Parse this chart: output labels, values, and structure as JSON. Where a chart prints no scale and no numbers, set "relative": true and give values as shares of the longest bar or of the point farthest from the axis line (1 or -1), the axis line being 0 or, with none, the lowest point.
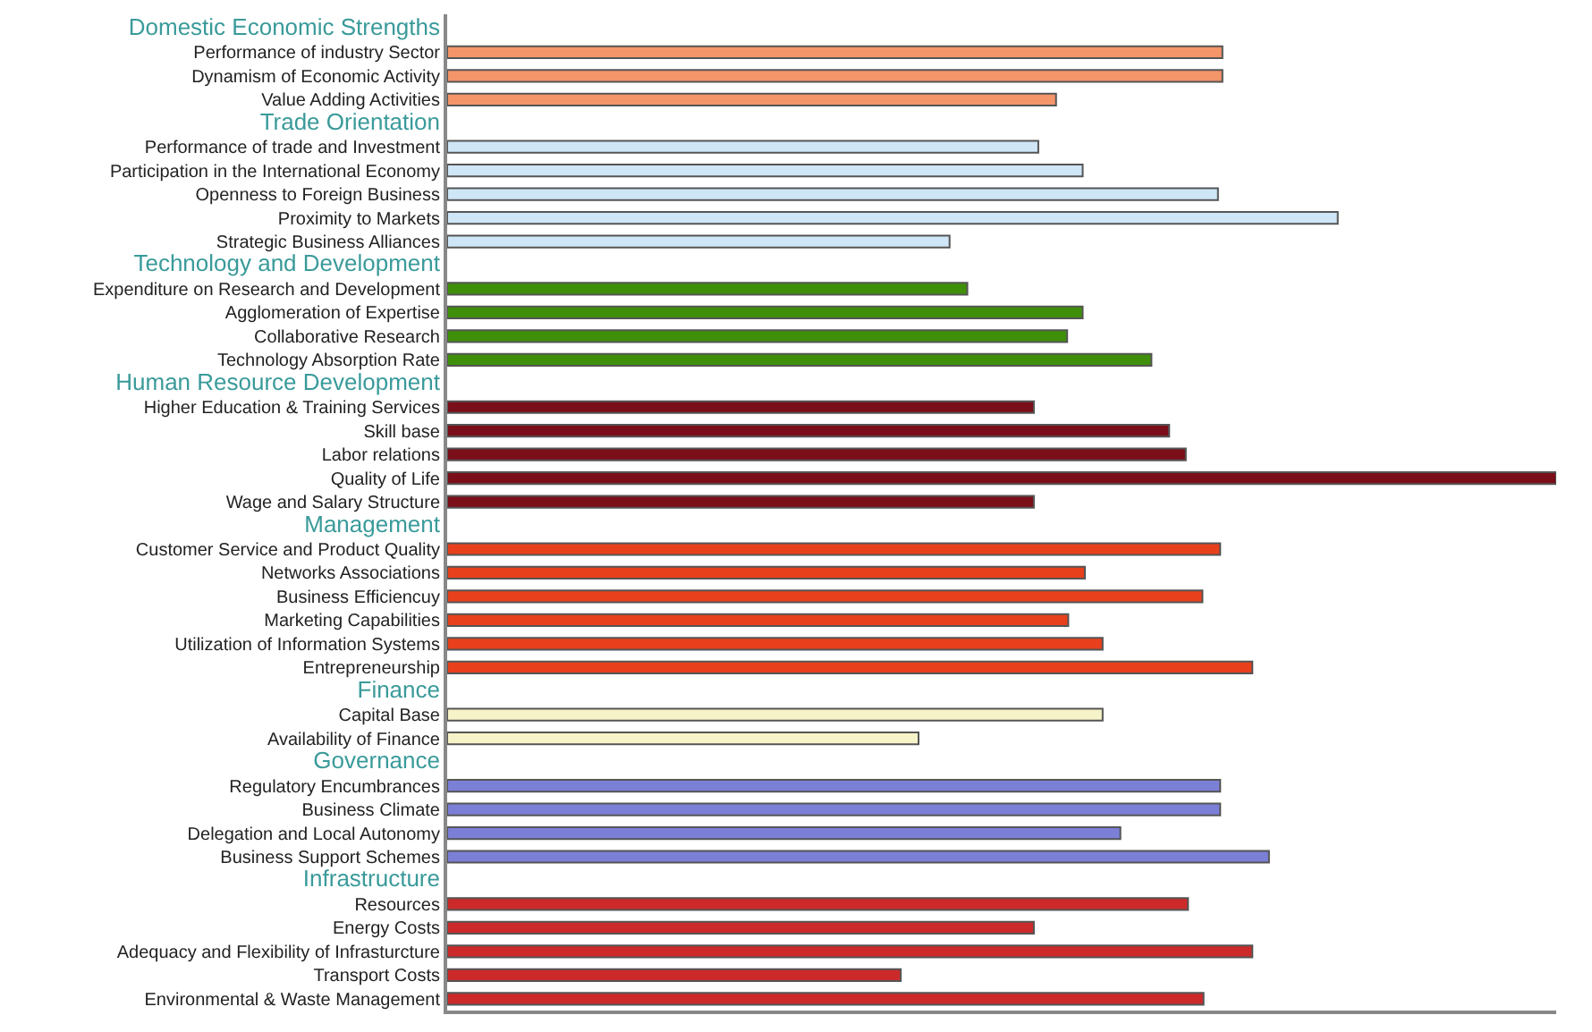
{
  "chart_data": {
    "type": "bar",
    "orientation": "horizontal",
    "relative": true,
    "legend": false,
    "categories": [
      "Domestic Economic Strengths",
      "Performance of industry Sector",
      "Dynamism of Economic Activity",
      "Value Adding Activities",
      "Trade Orientation",
      "Performance of trade and Investment",
      "Participation in the International Economy",
      "Openness to Foreign Business",
      "Proximity to Markets",
      "Strategic Business Alliances",
      "Technology and Development",
      "Expenditure on Research and Development",
      "Agglomeration of Expertise",
      "Collaborative Research",
      "Technology Absorption Rate",
      "Human Resource Development",
      "Higher Education & Training Services",
      "Skill base",
      "Labor relations",
      "Quality of Life",
      "Wage and Salary Structure",
      "Management",
      "Customer Service and Product Quality",
      "Networks Associations",
      "Business Efficiencuy",
      "Marketing Capabilities",
      "Utilization of Information Systems",
      "Entrepreneurship",
      "Finance",
      "Capital Base",
      "Availability of Finance",
      "Governance",
      "Regulatory Encumbrances",
      "Business Climate",
      "Delegation and Local Autonomy",
      "Business Support Schemes",
      "Infrastructure",
      "Resources",
      "Energy Costs",
      "Adequacy and Flexibility of Infrasturcture",
      "Transport Costs",
      "Environmental & Waste Management"
    ],
    "values": [
      null,
      0.699,
      0.699,
      0.549,
      null,
      0.533,
      0.573,
      0.695,
      0.803,
      0.453,
      null,
      0.469,
      0.573,
      0.559,
      0.635,
      null,
      0.529,
      0.651,
      0.666,
      1,
      0.529,
      null,
      0.697,
      0.575,
      0.681,
      0.56,
      0.591,
      0.726,
      null,
      0.591,
      0.425,
      null,
      0.697,
      0.697,
      0.607,
      0.741,
      null,
      0.668,
      0.529,
      0.726,
      0.409,
      0.682
    ],
    "colors": [
      null,
      "#f4956a",
      "#f4956a",
      "#f4956a",
      null,
      "#cfe6f7",
      "#cfe6f7",
      "#cfe6f7",
      "#cfe6f7",
      "#cfe6f7",
      null,
      "#3f8f0a",
      "#3f8f0a",
      "#3f8f0a",
      "#3f8f0a",
      null,
      "#7a0f1a",
      "#7a0f1a",
      "#7a0f1a",
      "#7a0f1a",
      "#7a0f1a",
      null,
      "#e8401c",
      "#e8401c",
      "#e8401c",
      "#e8401c",
      "#e8401c",
      "#e8401c",
      null,
      "#f7f3c8",
      "#f7f3c8",
      null,
      "#7b7fd6",
      "#7b7fd6",
      "#7b7fd6",
      "#7b7fd6",
      null,
      "#cc2a2a",
      "#cc2a2a",
      "#cc2a2a",
      "#cc2a2a",
      "#cc2a2a"
    ]
  }
}
